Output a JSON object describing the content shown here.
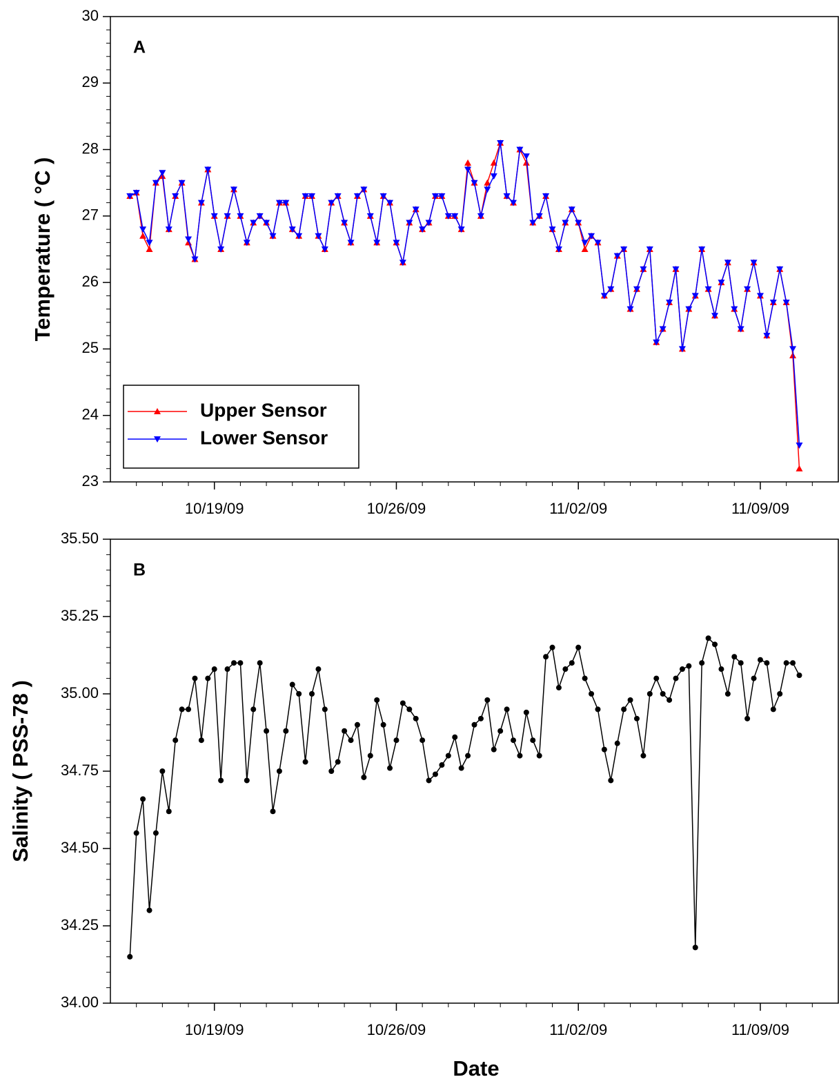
{
  "chart_data": [
    {
      "type": "line",
      "panel_label": "A",
      "ylabel": "Temperature ( °C )",
      "x": [
        15.75,
        16,
        16.25,
        16.5,
        16.75,
        17,
        17.25,
        17.5,
        17.75,
        18,
        18.25,
        18.5,
        18.75,
        19,
        19.25,
        19.5,
        19.75,
        20,
        20.25,
        20.5,
        20.75,
        21,
        21.25,
        21.5,
        21.75,
        22,
        22.25,
        22.5,
        22.75,
        23,
        23.25,
        23.5,
        23.75,
        24,
        24.25,
        24.5,
        24.75,
        25,
        25.25,
        25.5,
        25.75,
        26,
        26.25,
        26.5,
        26.75,
        27,
        27.25,
        27.5,
        27.75,
        28,
        28.25,
        28.5,
        28.75,
        29,
        29.25,
        29.5,
        29.75,
        30,
        30.25,
        30.5,
        30.75,
        31,
        31.25,
        31.5,
        31.75,
        32,
        32.25,
        32.5,
        32.75,
        33,
        33.25,
        33.5,
        33.75,
        34,
        34.25,
        34.5,
        34.75,
        35,
        35.25,
        35.5,
        35.75,
        36,
        36.25,
        36.5,
        36.75,
        37,
        37.25,
        37.5,
        37.75,
        38,
        38.25,
        38.5,
        38.75,
        39,
        39.25,
        39.5,
        39.75,
        40,
        40.25,
        40.5,
        40.75,
        41,
        41.25,
        41.5
      ],
      "series": [
        {
          "name": "Upper Sensor",
          "color": "#ff0000",
          "marker": "triangle-up",
          "values": [
            27.3,
            27.35,
            26.7,
            26.5,
            27.5,
            27.6,
            26.8,
            27.3,
            27.5,
            26.6,
            26.35,
            27.2,
            27.7,
            27.0,
            26.5,
            27.0,
            27.4,
            27.0,
            26.6,
            26.9,
            27.0,
            26.9,
            26.7,
            27.2,
            27.2,
            26.8,
            26.7,
            27.3,
            27.3,
            26.7,
            26.5,
            27.2,
            27.3,
            26.9,
            26.6,
            27.3,
            27.4,
            27.0,
            26.6,
            27.3,
            27.2,
            26.6,
            26.3,
            26.9,
            27.1,
            26.8,
            26.9,
            27.3,
            27.3,
            27.0,
            27.0,
            26.8,
            27.8,
            27.5,
            27.0,
            27.5,
            27.8,
            28.1,
            27.3,
            27.2,
            28.0,
            27.8,
            26.9,
            27.0,
            27.3,
            26.8,
            26.5,
            26.9,
            27.1,
            26.9,
            26.5,
            26.7,
            26.6,
            25.8,
            25.9,
            26.4,
            26.5,
            25.6,
            25.9,
            26.2,
            26.5,
            25.1,
            25.3,
            25.7,
            26.2,
            25.0,
            25.6,
            25.8,
            26.5,
            25.9,
            25.5,
            26.0,
            26.3,
            25.6,
            25.3,
            25.9,
            26.3,
            25.8,
            25.2,
            25.7,
            26.2,
            25.7,
            24.9,
            23.2
          ]
        },
        {
          "name": "Lower Sensor",
          "color": "#0000ff",
          "marker": "triangle-down",
          "values": [
            27.3,
            27.35,
            26.8,
            26.6,
            27.5,
            27.65,
            26.8,
            27.3,
            27.5,
            26.65,
            26.35,
            27.2,
            27.7,
            27.0,
            26.5,
            27.0,
            27.4,
            27.0,
            26.6,
            26.9,
            27.0,
            26.9,
            26.7,
            27.2,
            27.2,
            26.8,
            26.7,
            27.3,
            27.3,
            26.7,
            26.5,
            27.2,
            27.3,
            26.9,
            26.6,
            27.3,
            27.4,
            27.0,
            26.6,
            27.3,
            27.2,
            26.6,
            26.3,
            26.9,
            27.1,
            26.8,
            26.9,
            27.3,
            27.3,
            27.0,
            27.0,
            26.8,
            27.7,
            27.5,
            27.0,
            27.4,
            27.6,
            28.1,
            27.3,
            27.2,
            28.0,
            27.9,
            26.9,
            27.0,
            27.3,
            26.8,
            26.5,
            26.9,
            27.1,
            26.9,
            26.6,
            26.7,
            26.6,
            25.8,
            25.9,
            26.4,
            26.5,
            25.6,
            25.9,
            26.2,
            26.5,
            25.1,
            25.3,
            25.7,
            26.2,
            25.0,
            25.6,
            25.8,
            26.5,
            25.9,
            25.5,
            26.0,
            26.3,
            25.6,
            25.3,
            25.9,
            26.3,
            25.8,
            25.2,
            25.7,
            26.2,
            25.7,
            25.0,
            23.55
          ]
        }
      ],
      "xlim": [
        15,
        43
      ],
      "xticks": [
        {
          "value": 19,
          "label": "10/19/09"
        },
        {
          "value": 26,
          "label": "10/26/09"
        },
        {
          "value": 33,
          "label": "11/02/09"
        },
        {
          "value": 40,
          "label": "11/09/09"
        }
      ],
      "xminor_ticks": [
        16,
        17,
        18,
        20,
        21,
        22,
        23,
        24,
        25,
        27,
        28,
        29,
        30,
        31,
        32,
        34,
        35,
        36,
        37,
        38,
        39,
        41,
        42
      ],
      "ylim": [
        23,
        30
      ],
      "yticks": [
        23,
        24,
        25,
        26,
        27,
        28,
        29,
        30
      ],
      "yminor_ticks": [
        23.2,
        23.4,
        23.6,
        23.8,
        24.2,
        24.4,
        24.6,
        24.8,
        25.2,
        25.4,
        25.6,
        25.8,
        26.2,
        26.4,
        26.6,
        26.8,
        27.2,
        27.4,
        27.6,
        27.8,
        28.2,
        28.4,
        28.6,
        28.8,
        29.2,
        29.4,
        29.6,
        29.8
      ],
      "legend": "lower left"
    },
    {
      "type": "line",
      "panel_label": "B",
      "ylabel": "Salinity ( PSS-78 )",
      "xlabel": "Date",
      "x": [
        15.75,
        16,
        16.25,
        16.5,
        16.75,
        17,
        17.25,
        17.5,
        17.75,
        18,
        18.25,
        18.5,
        18.75,
        19,
        19.25,
        19.5,
        19.75,
        20,
        20.25,
        20.5,
        20.75,
        21,
        21.25,
        21.5,
        21.75,
        22,
        22.25,
        22.5,
        22.75,
        23,
        23.25,
        23.5,
        23.75,
        24,
        24.25,
        24.5,
        24.75,
        25,
        25.25,
        25.5,
        25.75,
        26,
        26.25,
        26.5,
        26.75,
        27,
        27.25,
        27.5,
        27.75,
        28,
        28.25,
        28.5,
        28.75,
        29,
        29.25,
        29.5,
        29.75,
        30,
        30.25,
        30.5,
        30.75,
        31,
        31.25,
        31.5,
        31.75,
        32,
        32.25,
        32.5,
        32.75,
        33,
        33.25,
        33.5,
        33.75,
        34,
        34.25,
        34.5,
        34.75,
        35,
        35.25,
        35.5,
        35.75,
        36,
        36.25,
        36.5,
        36.75,
        37,
        37.25,
        37.5,
        37.75,
        38,
        38.25,
        38.5,
        38.75,
        39,
        39.25,
        39.5,
        39.75,
        40,
        40.25,
        40.5,
        40.75,
        41,
        41.25,
        41.5
      ],
      "series": [
        {
          "color": "#000000",
          "marker": "circle",
          "values": [
            34.15,
            34.55,
            34.66,
            34.3,
            34.55,
            34.75,
            34.62,
            34.85,
            34.95,
            34.95,
            35.05,
            34.85,
            35.05,
            35.08,
            34.72,
            35.08,
            35.1,
            35.1,
            34.72,
            34.95,
            35.1,
            34.88,
            34.62,
            34.75,
            34.88,
            35.03,
            35.0,
            34.78,
            35.0,
            35.08,
            34.95,
            34.75,
            34.78,
            34.88,
            34.85,
            34.9,
            34.73,
            34.8,
            34.98,
            34.9,
            34.76,
            34.85,
            34.97,
            34.95,
            34.92,
            34.85,
            34.72,
            34.74,
            34.77,
            34.8,
            34.86,
            34.76,
            34.8,
            34.9,
            34.92,
            34.98,
            34.82,
            34.88,
            34.95,
            34.85,
            34.8,
            34.94,
            34.85,
            34.8,
            35.12,
            35.15,
            35.02,
            35.08,
            35.1,
            35.15,
            35.05,
            35.0,
            34.95,
            34.82,
            34.72,
            34.84,
            34.95,
            34.98,
            34.92,
            34.8,
            35.0,
            35.05,
            35.0,
            34.98,
            35.05,
            35.08,
            35.09,
            34.18,
            35.1,
            35.18,
            35.16,
            35.08,
            35.0,
            35.12,
            35.1,
            34.92,
            35.05,
            35.11,
            35.1,
            34.95,
            35.0,
            35.1,
            35.1,
            35.06
          ]
        }
      ],
      "xlim": [
        15,
        43
      ],
      "xticks": [
        {
          "value": 19,
          "label": "10/19/09"
        },
        {
          "value": 26,
          "label": "10/26/09"
        },
        {
          "value": 33,
          "label": "11/02/09"
        },
        {
          "value": 40,
          "label": "11/09/09"
        }
      ],
      "xminor_ticks": [
        16,
        17,
        18,
        20,
        21,
        22,
        23,
        24,
        25,
        27,
        28,
        29,
        30,
        31,
        32,
        34,
        35,
        36,
        37,
        38,
        39,
        41,
        42
      ],
      "ylim": [
        34,
        35.5
      ],
      "yticks": [
        {
          "value": 34,
          "label": "34.00"
        },
        {
          "value": 34.25,
          "label": "34.25"
        },
        {
          "value": 34.5,
          "label": "34.50"
        },
        {
          "value": 34.75,
          "label": "34.75"
        },
        {
          "value": 35,
          "label": "35.00"
        },
        {
          "value": 35.25,
          "label": "35.25"
        },
        {
          "value": 35.5,
          "label": "35.50"
        }
      ],
      "yminor_ticks": [
        34.05,
        34.1,
        34.15,
        34.2,
        34.3,
        34.35,
        34.4,
        34.45,
        34.55,
        34.6,
        34.65,
        34.7,
        34.8,
        34.85,
        34.9,
        34.95,
        35.05,
        35.1,
        35.15,
        35.2,
        35.3,
        35.35,
        35.4,
        35.45
      ]
    }
  ]
}
